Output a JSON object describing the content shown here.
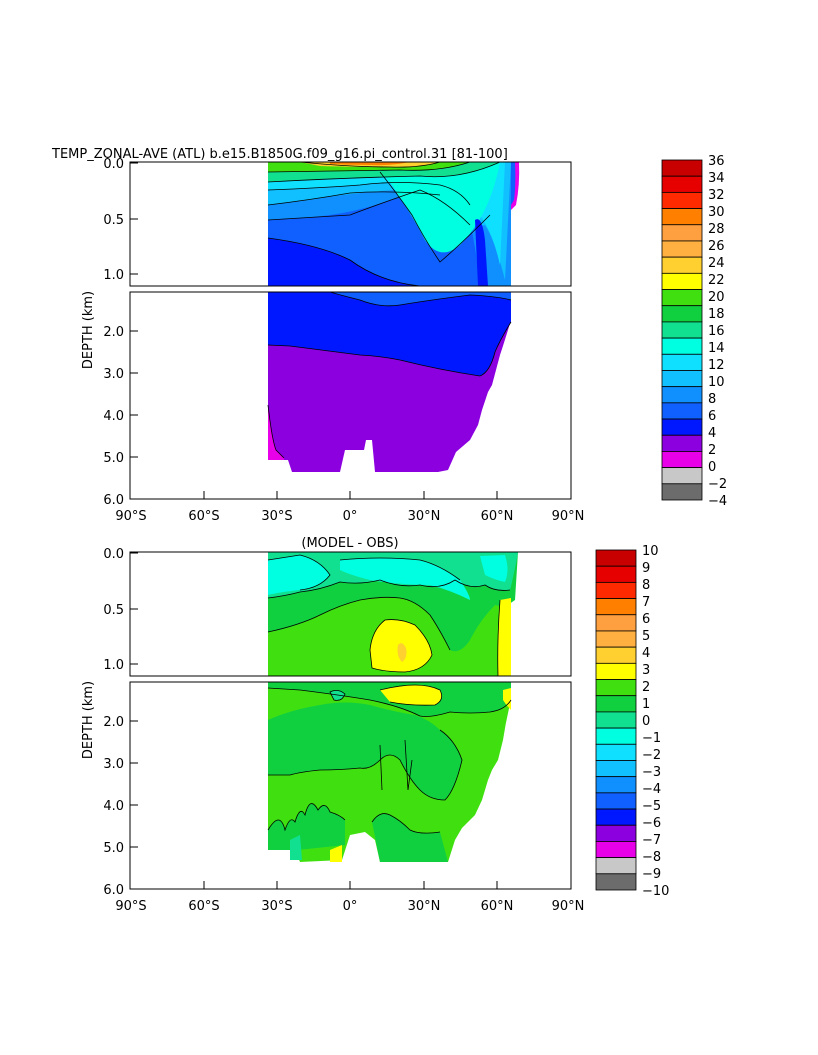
{
  "chart_data": [
    {
      "type": "heatmap",
      "title": "TEMP_ZONAL-AVE (ATL) b.e15.B1850G.f09_g16.pi_control.31 [81-100]",
      "ylabel": "DEPTH (km)",
      "x_ticks": [
        "90°S",
        "60°S",
        "30°S",
        "0°",
        "30°N",
        "60°N",
        "90°N"
      ],
      "y_ticks_upper": [
        "0.0",
        "0.5",
        "1.0"
      ],
      "y_ticks_lower": [
        "2.0",
        "3.0",
        "4.0",
        "5.0",
        "6.0"
      ],
      "colorbar_labels": [
        "36",
        "34",
        "32",
        "30",
        "28",
        "26",
        "24",
        "22",
        "20",
        "18",
        "16",
        "14",
        "12",
        "10",
        "8",
        "6",
        "4",
        "2",
        "0",
        "-2",
        "-4"
      ],
      "colorbar_colors": [
        "#c80000",
        "#e60000",
        "#ff2a00",
        "#ff8000",
        "#ffa040",
        "#ffb040",
        "#ffd030",
        "#ffff00",
        "#40e010",
        "#10d040",
        "#10e090",
        "#00ffe0",
        "#10e0ff",
        "#10c0ff",
        "#1090ff",
        "#1060ff",
        "#0018ff",
        "#8c00e0",
        "#e800e8",
        "#c8c8c8",
        "#6c6c6c"
      ]
    },
    {
      "type": "heatmap",
      "title": "(MODEL - OBS)",
      "ylabel": "DEPTH (km)",
      "x_ticks": [
        "90°S",
        "60°S",
        "30°S",
        "0°",
        "30°N",
        "60°N",
        "90°N"
      ],
      "y_ticks_upper": [
        "0.0",
        "0.5",
        "1.0"
      ],
      "y_ticks_lower": [
        "2.0",
        "3.0",
        "4.0",
        "5.0",
        "6.0"
      ],
      "colorbar_labels": [
        "10",
        "9",
        "8",
        "7",
        "6",
        "5",
        "4",
        "3",
        "2",
        "1",
        "0",
        "-1",
        "-2",
        "-3",
        "-4",
        "-5",
        "-6",
        "-7",
        "-8",
        "-9",
        "-10"
      ],
      "colorbar_colors": [
        "#c80000",
        "#e60000",
        "#ff2a00",
        "#ff8000",
        "#ffa040",
        "#ffb040",
        "#ffd030",
        "#ffff00",
        "#40e010",
        "#10d040",
        "#10e090",
        "#00ffe0",
        "#10e0ff",
        "#10c0ff",
        "#1090ff",
        "#1060ff",
        "#0018ff",
        "#8c00e0",
        "#e800e8",
        "#c8c8c8",
        "#6c6c6c"
      ]
    }
  ]
}
